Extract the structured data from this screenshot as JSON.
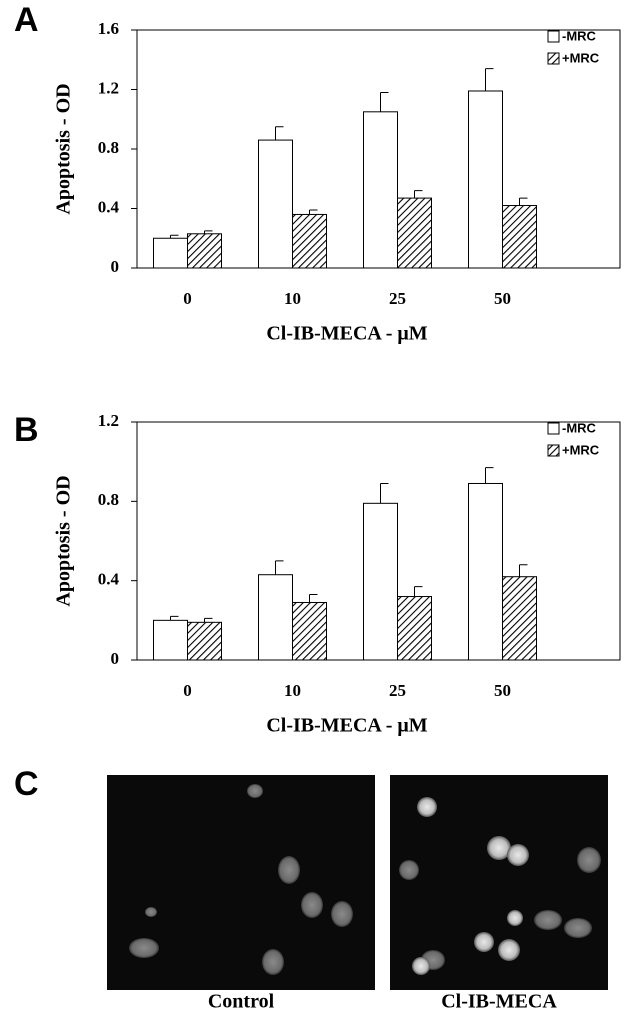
{
  "chart_data": [
    {
      "type": "bar",
      "panel": "A",
      "categories": [
        "0",
        "10",
        "25",
        "50"
      ],
      "xlabel": "Cl-IB-MECA - μM",
      "ylabel": "Apoptosis - OD",
      "series": [
        {
          "name": "-MRC",
          "color": "#ffffff",
          "hatch": false,
          "values": [
            0.2,
            0.86,
            1.05,
            1.19
          ],
          "errors": [
            0.02,
            0.09,
            0.13,
            0.15
          ]
        },
        {
          "name": "+MRC",
          "color": "#ffffff",
          "hatch": true,
          "values": [
            0.23,
            0.36,
            0.47,
            0.42
          ],
          "errors": [
            0.02,
            0.03,
            0.05,
            0.05
          ]
        }
      ],
      "ylim": [
        0,
        1.6
      ],
      "yticks": [
        0,
        0.4,
        0.8,
        1.2,
        1.6
      ],
      "legend": "upper right"
    },
    {
      "type": "bar",
      "panel": "B",
      "categories": [
        "0",
        "10",
        "25",
        "50"
      ],
      "xlabel": "Cl-IB-MECA - μM",
      "ylabel": "Apoptosis - OD",
      "series": [
        {
          "name": "-MRC",
          "color": "#ffffff",
          "hatch": false,
          "values": [
            0.2,
            0.43,
            0.79,
            0.89
          ],
          "errors": [
            0.02,
            0.07,
            0.1,
            0.08
          ]
        },
        {
          "name": "+MRC",
          "color": "#ffffff",
          "hatch": true,
          "values": [
            0.19,
            0.29,
            0.32,
            0.42
          ],
          "errors": [
            0.02,
            0.04,
            0.05,
            0.06
          ]
        }
      ],
      "ylim": [
        0,
        1.2
      ],
      "yticks": [
        0,
        0.4,
        0.8,
        1.2
      ],
      "legend": "upper right"
    }
  ],
  "micrographs": {
    "panel": "C",
    "images": [
      {
        "caption": "Control"
      },
      {
        "caption": "Cl-IB-MECA"
      }
    ]
  }
}
